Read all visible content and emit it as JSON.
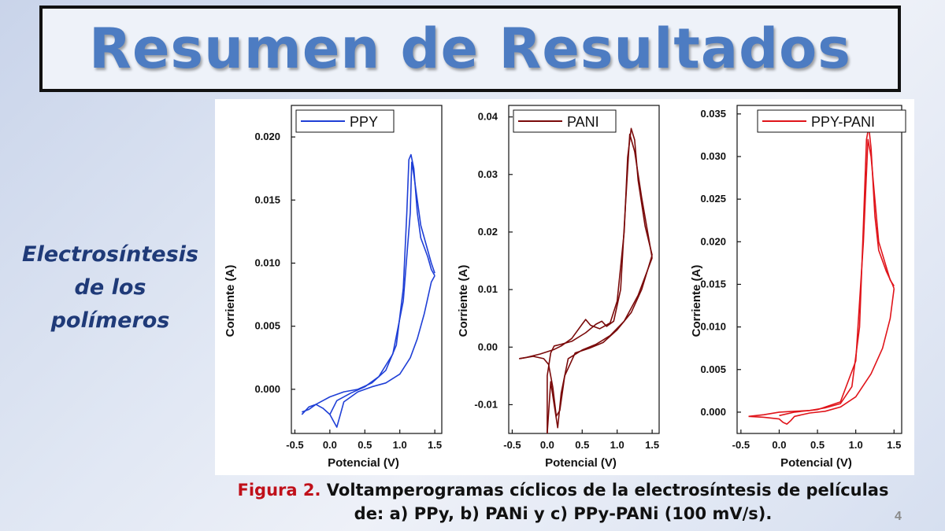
{
  "slide": {
    "title": "Resumen de Resultados",
    "side_label_lines": [
      "Electrosíntesis",
      "de los",
      "polímeros"
    ],
    "caption_label": "Figura 2.",
    "caption_text_1": " Voltamperogramas cíclicos de la electrosíntesis de películas",
    "caption_text_2": "de: a) PPy, b) PANi y c) PPy-PANi (100 mV/s).",
    "slide_number": "4"
  },
  "chart_data": [
    {
      "type": "line",
      "xlabel": "Potencial (V)",
      "ylabel": "Corriente (A)",
      "xlim": [
        -0.55,
        1.6
      ],
      "ylim": [
        -0.0035,
        0.0225
      ],
      "xticks": [
        -0.5,
        0.0,
        0.5,
        1.0,
        1.5
      ],
      "xtick_labels": [
        "-0.5",
        "0.0",
        "0.5",
        "1.0",
        "1.5"
      ],
      "yticks": [
        0.0,
        0.005,
        0.01,
        0.015,
        0.02
      ],
      "ytick_labels": [
        "0.000",
        "0.005",
        "0.010",
        "0.015",
        "0.020"
      ],
      "legend_position": "top-left",
      "color": "#1f3fd6",
      "series": [
        {
          "name": "PPY",
          "segments": [
            {
              "x": [
                -0.4,
                -0.3,
                -0.2,
                0.0,
                0.2,
                0.4,
                0.6,
                0.8,
                0.95,
                1.05,
                1.1,
                1.13,
                1.16,
                1.2,
                1.25,
                1.3,
                1.4,
                1.45,
                1.5
              ],
              "y": [
                -0.0018,
                -0.0016,
                -0.0012,
                -0.0006,
                -0.0002,
                0.0,
                0.0005,
                0.0015,
                0.0035,
                0.008,
                0.014,
                0.0182,
                0.0186,
                0.0175,
                0.014,
                0.012,
                0.0105,
                0.0095,
                0.009
              ]
            },
            {
              "x": [
                1.5,
                1.45,
                1.35,
                1.25,
                1.15,
                1.0,
                0.8,
                0.6,
                0.4,
                0.2,
                0.15,
                0.1,
                0.05,
                0.0,
                -0.1,
                -0.2,
                -0.3,
                -0.4
              ],
              "y": [
                0.009,
                0.0085,
                0.006,
                0.004,
                0.0025,
                0.0012,
                0.0005,
                0.0002,
                -0.0002,
                -0.001,
                -0.002,
                -0.003,
                -0.0025,
                -0.002,
                -0.0015,
                -0.0012,
                -0.0014,
                -0.002
              ]
            },
            {
              "x": [
                0.0,
                0.1,
                0.3,
                0.5,
                0.7,
                0.9,
                1.05,
                1.15,
                1.17,
                1.2,
                1.3,
                1.45,
                1.5
              ],
              "y": [
                -0.002,
                -0.0009,
                -0.0003,
                0.0002,
                0.001,
                0.0028,
                0.007,
                0.014,
                0.018,
                0.017,
                0.013,
                0.01,
                0.0092
              ]
            }
          ]
        }
      ]
    },
    {
      "type": "line",
      "xlabel": "Potencial (V)",
      "ylabel": "Corriente (A)",
      "xlim": [
        -0.55,
        1.6
      ],
      "ylim": [
        -0.015,
        0.042
      ],
      "xticks": [
        -0.5,
        0.0,
        0.5,
        1.0,
        1.5
      ],
      "xtick_labels": [
        "-0.5",
        "0.0",
        "0.5",
        "1.0",
        "1.5"
      ],
      "yticks": [
        -0.01,
        0.0,
        0.01,
        0.02,
        0.03,
        0.04
      ],
      "ytick_labels": [
        "-0.01",
        "0.00",
        "0.01",
        "0.02",
        "0.03",
        "0.04"
      ],
      "legend_position": "top-left",
      "color": "#7a0a0a",
      "series": [
        {
          "name": "PANI",
          "segments": [
            {
              "x": [
                -0.4,
                -0.3,
                -0.1,
                0.0,
                0.1,
                0.2,
                0.35,
                0.5,
                0.55,
                0.62,
                0.75,
                0.9,
                1.0,
                1.1,
                1.15,
                1.2,
                1.25,
                1.3,
                1.4,
                1.5
              ],
              "y": [
                -0.002,
                -0.0018,
                -0.0012,
                -0.0008,
                -0.0004,
                0.0002,
                0.0015,
                0.004,
                0.0048,
                0.0038,
                0.0032,
                0.0042,
                0.008,
                0.02,
                0.033,
                0.038,
                0.036,
                0.029,
                0.021,
                0.016
              ]
            },
            {
              "x": [
                1.5,
                1.45,
                1.35,
                1.2,
                1.0,
                0.8,
                0.6,
                0.4,
                0.25,
                0.18,
                0.13,
                0.08,
                0.02,
                -0.05,
                -0.2,
                -0.4
              ],
              "y": [
                0.016,
                0.014,
                0.01,
                0.006,
                0.003,
                0.0008,
                -0.0002,
                -0.001,
                -0.005,
                -0.011,
                -0.012,
                -0.007,
                -0.003,
                -0.002,
                -0.0016,
                -0.002
              ]
            },
            {
              "x": [
                0.0,
                0.0,
                0.05,
                0.1,
                0.2,
                0.35,
                0.55,
                0.7,
                0.78,
                0.85,
                0.95,
                1.05,
                1.12,
                1.18,
                1.25,
                1.35,
                1.45,
                1.5
              ],
              "y": [
                -0.015,
                -0.005,
                -0.001,
                0.0002,
                0.0005,
                0.001,
                0.0025,
                0.004,
                0.0045,
                0.0036,
                0.0045,
                0.01,
                0.025,
                0.037,
                0.034,
                0.026,
                0.019,
                0.0155
              ]
            },
            {
              "x": [
                1.5,
                1.3,
                1.1,
                0.9,
                0.7,
                0.5,
                0.3,
                0.2,
                0.15,
                0.1,
                0.05,
                0.0
              ],
              "y": [
                0.0155,
                0.009,
                0.0045,
                0.002,
                0.0005,
                -0.0005,
                -0.002,
                -0.008,
                -0.014,
                -0.01,
                -0.006,
                -0.015
              ]
            }
          ]
        }
      ]
    },
    {
      "type": "line",
      "xlabel": "Potencial (V)",
      "ylabel": "Corriente (A)",
      "xlim": [
        -0.55,
        1.6
      ],
      "ylim": [
        -0.0025,
        0.036
      ],
      "xticks": [
        -0.5,
        0.0,
        0.5,
        1.0,
        1.5
      ],
      "xtick_labels": [
        "-0.5",
        "0.0",
        "0.5",
        "1.0",
        "1.5"
      ],
      "yticks": [
        0.0,
        0.005,
        0.01,
        0.015,
        0.02,
        0.025,
        0.03,
        0.035
      ],
      "ytick_labels": [
        "0.000",
        "0.005",
        "0.010",
        "0.015",
        "0.020",
        "0.025",
        "0.030",
        "0.035"
      ],
      "legend_position": "top-right",
      "color": "#e0141a",
      "series": [
        {
          "name": "PPY-PANI",
          "segments": [
            {
              "x": [
                -0.4,
                -0.2,
                0.0,
                0.2,
                0.4,
                0.6,
                0.8,
                0.95,
                1.05,
                1.1,
                1.14,
                1.17,
                1.2,
                1.25,
                1.3,
                1.4,
                1.48,
                1.5
              ],
              "y": [
                -0.0005,
                -0.0003,
                0.0,
                0.0001,
                0.0002,
                0.0005,
                0.001,
                0.003,
                0.01,
                0.022,
                0.032,
                0.0335,
                0.031,
                0.023,
                0.019,
                0.0165,
                0.015,
                0.0145
              ]
            },
            {
              "x": [
                1.5,
                1.45,
                1.35,
                1.2,
                1.0,
                0.8,
                0.6,
                0.4,
                0.2,
                0.15,
                0.1,
                0.05,
                0.0,
                -0.2,
                -0.4
              ],
              "y": [
                0.0145,
                0.011,
                0.0075,
                0.0045,
                0.0018,
                0.0006,
                0.0001,
                -0.0001,
                -0.0005,
                -0.001,
                -0.0014,
                -0.0012,
                -0.0008,
                -0.0006,
                -0.0005
              ]
            },
            {
              "x": [
                0.0,
                0.2,
                0.5,
                0.8,
                1.0,
                1.1,
                1.16,
                1.2,
                1.3,
                1.45,
                1.5
              ],
              "y": [
                -0.0004,
                0.0,
                0.0003,
                0.0012,
                0.006,
                0.02,
                0.032,
                0.03,
                0.02,
                0.0155,
                0.0148
              ]
            }
          ]
        }
      ]
    }
  ]
}
